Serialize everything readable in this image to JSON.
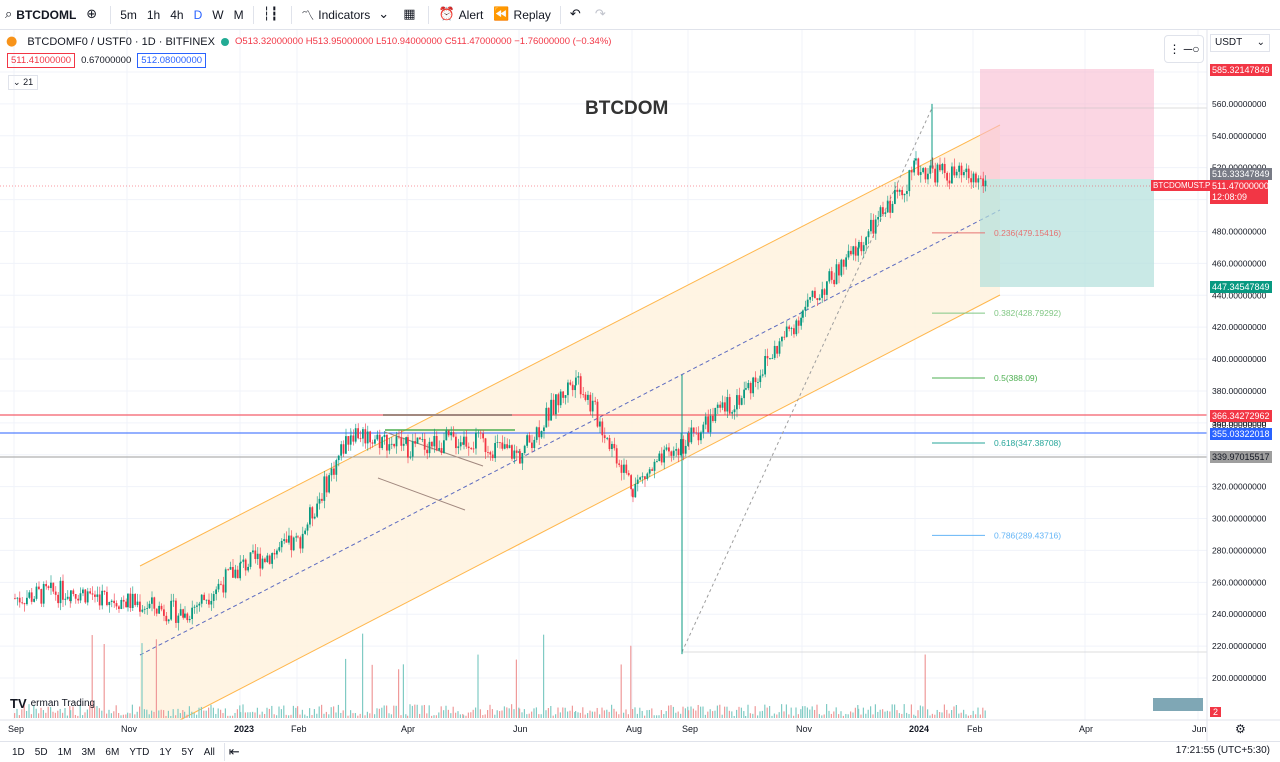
{
  "toolbar": {
    "symbol": "BTCDOML",
    "intervals": [
      "5m",
      "1h",
      "4h",
      "D",
      "W",
      "M"
    ],
    "active_interval": "D",
    "indicators": "Indicators",
    "alert": "Alert",
    "replay": "Replay"
  },
  "legend": {
    "title": "BTCDOMF0 / USTF0 · 1D · BITFINEX",
    "ohlc": "O513.32000000 H513.95000000 L510.94000000 C511.47000000 −1.76000000 (−0.34%)",
    "bid": "511.41000000",
    "spread": "0.67000000",
    "ask": "512.08000000",
    "indicator": "21"
  },
  "chart_title": "BTCDOM",
  "currency": "USDT",
  "watermark": "erman Trading",
  "clock": "17:21:55 (UTC+5:30)",
  "ranges": [
    "1D",
    "5D",
    "1M",
    "3M",
    "6M",
    "YTD",
    "1Y",
    "5Y",
    "All"
  ],
  "x_ticks": [
    "Sep",
    "Nov",
    "2023",
    "Feb",
    "Apr",
    "Jun",
    "Aug",
    "Sep",
    "Nov",
    "2024",
    "Feb",
    "Apr",
    "Jun"
  ],
  "y_ticks": [
    "580.00000000",
    "560.00000000",
    "540.00000000",
    "520.00000000",
    "500.00000000",
    "480.00000000",
    "460.00000000",
    "440.00000000",
    "420.00000000",
    "400.00000000",
    "380.00000000",
    "360.00000000",
    "340.00000000",
    "320.00000000",
    "300.00000000",
    "280.00000000",
    "260.00000000",
    "240.00000000",
    "220.00000000",
    "200.00000000"
  ],
  "price_labels": {
    "tp_upper": "585.32147849",
    "entry_upper": "516.33347849",
    "symbol_tag": "BTCDOMUST.P",
    "last": "511.47000000",
    "countdown": "12:08:09",
    "tp_lower": "447.34547849",
    "line_red": "366.34272962",
    "line_red2": "360.00000000",
    "line_blue": "355.03322018",
    "line_grey": "339.97015517",
    "scale_count": "2"
  },
  "fib": [
    {
      "label": "0.236(479.15416)",
      "value": 479.15416,
      "color": "#e57373"
    },
    {
      "label": "0.382(428.79292)",
      "value": 428.79292,
      "color": "#81c784"
    },
    {
      "label": "0.5(388.09)",
      "value": 388.09,
      "color": "#4caf50"
    },
    {
      "label": "0.618(347.38708)",
      "value": 347.38708,
      "color": "#26a69a"
    },
    {
      "label": "0.786(289.43716)",
      "value": 289.43716,
      "color": "#64b5f6"
    }
  ],
  "chart_data": {
    "type": "candlestick",
    "x": [
      "2022-09",
      "2022-10",
      "2022-11",
      "2022-12",
      "2023-01",
      "2023-02",
      "2023-03",
      "2023-04",
      "2023-05",
      "2023-06",
      "2023-07",
      "2023-08",
      "2023-09",
      "2023-10",
      "2023-11",
      "2023-12",
      "2024-01",
      "2024-02"
    ],
    "close": [
      250,
      255,
      248,
      240,
      270,
      285,
      355,
      345,
      350,
      340,
      390,
      320,
      350,
      380,
      430,
      470,
      520,
      511
    ],
    "ylim": [
      190,
      590
    ],
    "levels": [
      366.34272962,
      355.03322018,
      339.97015517
    ]
  },
  "colors": {
    "up": "#089981",
    "down": "#f23645",
    "channel": "#ff9800",
    "accent": "#2962ff"
  }
}
